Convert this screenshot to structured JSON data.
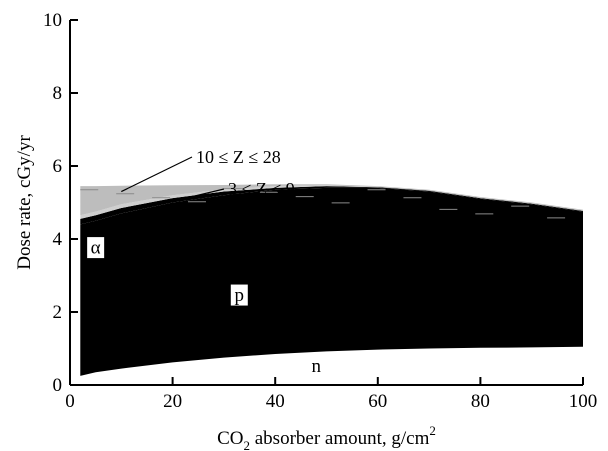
{
  "chart_data": {
    "type": "area",
    "xlabel": "CO2 absorber amount, g/cm2",
    "xlabel_parts": {
      "main": "CO",
      "sub": "2",
      "rest": " absorber amount, g/cm",
      "sup": "2"
    },
    "ylabel": "Dose rate, cGy/yr",
    "xlim": [
      0,
      100
    ],
    "ylim": [
      0,
      10
    ],
    "x_ticks": [
      0,
      20,
      40,
      60,
      80,
      100
    ],
    "y_ticks": [
      0,
      2,
      4,
      6,
      8,
      10
    ],
    "grid": false,
    "x": [
      2,
      5,
      10,
      20,
      30,
      40,
      50,
      60,
      70,
      80,
      90,
      100
    ],
    "series": [
      {
        "name": "n",
        "lower": [
          0.0,
          0.0,
          0.0,
          0.0,
          0.0,
          0.0,
          0.0,
          0.0,
          0.0,
          0.0,
          0.0,
          0.0
        ],
        "upper": [
          0.25,
          0.35,
          0.45,
          0.62,
          0.75,
          0.85,
          0.92,
          0.97,
          1.0,
          1.02,
          1.03,
          1.05
        ]
      },
      {
        "name": "p",
        "lower": [
          0.25,
          0.35,
          0.45,
          0.62,
          0.75,
          0.85,
          0.92,
          0.97,
          1.0,
          1.02,
          1.03,
          1.05
        ],
        "upper": [
          4.4,
          4.5,
          4.7,
          5.0,
          5.2,
          5.35,
          5.4,
          5.4,
          5.3,
          5.1,
          4.95,
          4.75
        ]
      },
      {
        "name": "α",
        "lower": [
          4.4,
          4.5,
          4.7,
          5.0,
          5.2,
          5.35,
          5.4,
          5.4,
          5.3,
          5.1,
          4.95,
          4.75
        ],
        "upper": [
          4.55,
          4.65,
          4.85,
          5.12,
          5.3,
          5.4,
          5.45,
          5.42,
          5.32,
          5.12,
          4.97,
          4.77
        ]
      },
      {
        "name": "3 ≤ Z ≤ 9",
        "lower": [
          4.55,
          4.65,
          4.85,
          5.12,
          5.3,
          5.4,
          5.45,
          5.42,
          5.32,
          5.12,
          4.97,
          4.77
        ],
        "upper": [
          4.65,
          4.75,
          4.95,
          5.2,
          5.36,
          5.45,
          5.47,
          5.43,
          5.33,
          5.13,
          4.98,
          4.78
        ]
      },
      {
        "name": "10 ≤ Z ≤ 28",
        "lower": [
          4.65,
          4.75,
          4.95,
          5.2,
          5.36,
          5.45,
          5.47,
          5.43,
          5.33,
          5.13,
          4.98,
          4.78
        ],
        "upper": [
          5.45,
          5.45,
          5.46,
          5.47,
          5.48,
          5.5,
          5.5,
          5.45,
          5.35,
          5.15,
          5.0,
          4.8
        ]
      }
    ],
    "annotations": [
      {
        "text": "10 ≤ Z ≤ 28",
        "target": [
          10,
          5.3
        ]
      },
      {
        "text": "3 ≤ Z ≤ 9",
        "target": [
          22,
          5.1
        ]
      }
    ],
    "region_labels": [
      {
        "text": "α",
        "at": [
          5,
          3.6
        ],
        "boxed": true
      },
      {
        "text": "p",
        "at": [
          33,
          2.3
        ],
        "boxed": true
      },
      {
        "text": "n",
        "at": [
          48,
          0.35
        ],
        "boxed": false
      }
    ],
    "colors": {
      "n": "#ffffff",
      "p": "#000000",
      "alpha": "#000000",
      "z3_9": "#cfcfcf",
      "z10_28": "#bdbdbd"
    }
  }
}
